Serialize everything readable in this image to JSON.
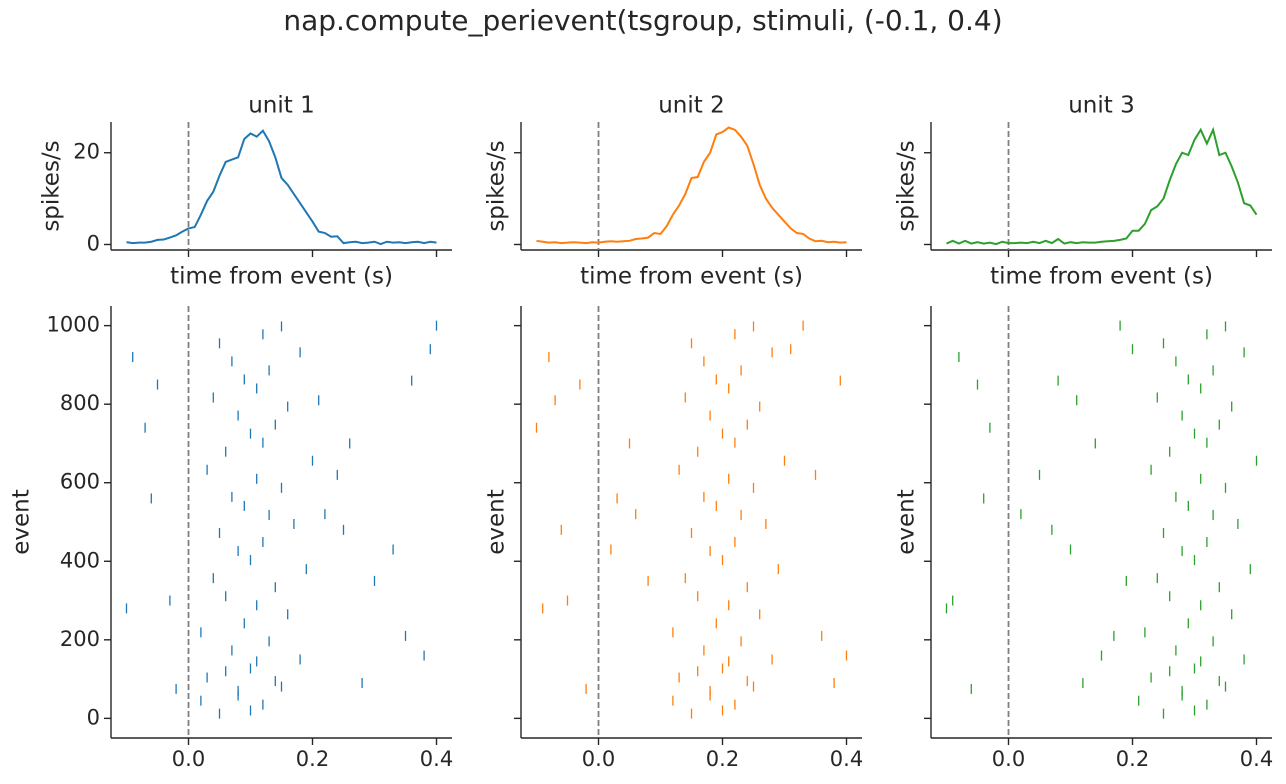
{
  "title": "nap.compute_perievent(tsgroup, stimuli, (-0.1, 0.4)",
  "chart_data": [
    {
      "type": "line",
      "title": "unit 1",
      "xlabel": "time from event (s)",
      "ylabel": "spikes/s",
      "color": "#1f77b4",
      "vline": 0,
      "x": [
        -0.1,
        -0.09,
        -0.08,
        -0.07,
        -0.06,
        -0.05,
        -0.04,
        -0.03,
        -0.02,
        -0.01,
        0,
        0.01,
        0.02,
        0.03,
        0.04,
        0.05,
        0.06,
        0.07,
        0.08,
        0.09,
        0.1,
        0.11,
        0.12,
        0.13,
        0.14,
        0.15,
        0.16,
        0.17,
        0.18,
        0.19,
        0.2,
        0.21,
        0.22,
        0.23,
        0.24,
        0.25,
        0.26,
        0.27,
        0.28,
        0.29,
        0.3,
        0.31,
        0.32,
        0.33,
        0.34,
        0.35,
        0.36,
        0.37,
        0.38,
        0.39,
        0.4
      ],
      "values": [
        0.5,
        0.3,
        0.4,
        0.4,
        0.6,
        1,
        1.1,
        1.5,
        2,
        2.8,
        3.5,
        3.8,
        6.5,
        9.5,
        11.5,
        15,
        18,
        18.5,
        19,
        23,
        24.2,
        23.5,
        24.8,
        22.5,
        19,
        14.5,
        13,
        11,
        9,
        7,
        5,
        2.8,
        2.5,
        1.7,
        1.8,
        0.3,
        0.5,
        0.6,
        0.3,
        0.4,
        0.6,
        0.1,
        0.6,
        0.4,
        0.5,
        0.3,
        0.5,
        0.6,
        0.3,
        0.6,
        0.4
      ],
      "xlim": [
        -0.125,
        0.425
      ],
      "xticks": [
        0,
        0.2,
        0.4
      ],
      "show_xticklabels": false,
      "ylim": [
        -1.2,
        26.7
      ],
      "yticks": [
        0,
        20
      ],
      "show_yticklabels": true
    },
    {
      "type": "line",
      "title": "unit 2",
      "xlabel": "time from event (s)",
      "ylabel": "spikes/s",
      "color": "#ff7f0e",
      "vline": 0,
      "x": [
        -0.1,
        -0.09,
        -0.08,
        -0.07,
        -0.06,
        -0.05,
        -0.04,
        -0.03,
        -0.02,
        -0.01,
        0,
        0.01,
        0.02,
        0.03,
        0.04,
        0.05,
        0.06,
        0.07,
        0.08,
        0.09,
        0.1,
        0.11,
        0.12,
        0.13,
        0.14,
        0.15,
        0.16,
        0.17,
        0.18,
        0.19,
        0.2,
        0.21,
        0.22,
        0.23,
        0.24,
        0.25,
        0.26,
        0.27,
        0.28,
        0.29,
        0.3,
        0.31,
        0.32,
        0.33,
        0.34,
        0.35,
        0.36,
        0.37,
        0.38,
        0.39,
        0.4
      ],
      "values": [
        0.8,
        0.6,
        0.4,
        0.5,
        0.3,
        0.4,
        0.5,
        0.4,
        0.3,
        0.5,
        0.4,
        0.6,
        0.7,
        0.6,
        0.7,
        0.8,
        1.2,
        1.3,
        1.5,
        2.5,
        2.3,
        4,
        6.5,
        8.5,
        11,
        14.5,
        14.7,
        18,
        20,
        24,
        24.5,
        25.5,
        25,
        23.5,
        21.5,
        17.5,
        13,
        10,
        8,
        6.5,
        5,
        3.5,
        2.5,
        2.3,
        1.3,
        0.7,
        0.8,
        0.5,
        0.6,
        0.4,
        0.5
      ],
      "xlim": [
        -0.125,
        0.425
      ],
      "xticks": [
        0,
        0.2,
        0.4
      ],
      "show_xticklabels": false,
      "ylim": [
        -1.2,
        26.7
      ],
      "yticks": [
        0,
        20
      ],
      "show_yticklabels": false
    },
    {
      "type": "line",
      "title": "unit 3",
      "xlabel": "time from event (s)",
      "ylabel": "spikes/s",
      "color": "#2ca02c",
      "vline": 0,
      "x": [
        -0.1,
        -0.09,
        -0.08,
        -0.07,
        -0.06,
        -0.05,
        -0.04,
        -0.03,
        -0.02,
        -0.01,
        0,
        0.01,
        0.02,
        0.03,
        0.04,
        0.05,
        0.06,
        0.07,
        0.08,
        0.09,
        0.1,
        0.11,
        0.12,
        0.13,
        0.14,
        0.15,
        0.16,
        0.17,
        0.18,
        0.19,
        0.2,
        0.21,
        0.22,
        0.23,
        0.24,
        0.25,
        0.26,
        0.27,
        0.28,
        0.29,
        0.3,
        0.31,
        0.32,
        0.33,
        0.34,
        0.35,
        0.36,
        0.37,
        0.38,
        0.39,
        0.4
      ],
      "values": [
        0.2,
        0.8,
        0.2,
        0.8,
        0.2,
        0.5,
        0.2,
        0.4,
        0.1,
        0.6,
        0.3,
        0.3,
        0.4,
        0.3,
        0.6,
        0.3,
        0.8,
        0.3,
        1.2,
        0.2,
        0.5,
        0.3,
        0.5,
        0.4,
        0.4,
        0.6,
        0.7,
        0.8,
        1,
        1.3,
        3,
        3,
        4.5,
        7.5,
        8.3,
        10,
        14,
        17.5,
        20,
        19.5,
        22.8,
        25,
        22,
        25,
        19.5,
        20,
        17,
        13.5,
        9,
        8.5,
        6.5
      ],
      "xlim": [
        -0.125,
        0.425
      ],
      "xticks": [
        0,
        0.2,
        0.4
      ],
      "show_xticklabels": false,
      "ylim": [
        -1.2,
        26.7
      ],
      "yticks": [
        0,
        20
      ],
      "show_yticklabels": false
    },
    {
      "type": "raster",
      "ylabel": "event",
      "color": "#1f77b4",
      "vline": 0,
      "x": [
        0.05,
        0.12,
        0.08,
        0.15,
        0.03,
        0.1,
        0.18,
        0.07,
        0.13,
        0.02,
        0.09,
        0.16,
        0.11,
        0.06,
        0.14,
        0.04,
        0.19,
        0.1,
        0.08,
        0.12,
        0.05,
        0.17,
        0.13,
        0.09,
        0.07,
        0.15,
        0.11,
        0.03,
        0.2,
        0.06,
        0.12,
        0.1,
        0.14,
        0.08,
        0.16,
        0.04,
        0.11,
        0.09,
        0.13,
        0.07,
        0.18,
        0.05,
        0.12,
        0.15,
        0.1,
        0.02,
        0.08,
        0.14,
        0.06,
        0.11,
        -0.09,
        -0.05,
        -0.07,
        0.24,
        0.28,
        0.33,
        0.38,
        -0.03,
        0.22,
        0.4,
        -0.1,
        0.36,
        0.26,
        -0.02,
        0.3,
        0.25,
        0.35,
        -0.06,
        0.21,
        0.39
      ],
      "values": [
        12,
        35,
        58,
        81,
        104,
        127,
        150,
        173,
        196,
        219,
        242,
        265,
        288,
        311,
        334,
        357,
        380,
        403,
        426,
        449,
        472,
        495,
        518,
        541,
        564,
        587,
        610,
        633,
        656,
        679,
        702,
        725,
        748,
        771,
        794,
        817,
        840,
        863,
        886,
        909,
        932,
        955,
        978,
        998,
        20,
        45,
        70,
        95,
        120,
        145,
        920,
        850,
        740,
        620,
        90,
        430,
        160,
        300,
        520,
        1000,
        280,
        860,
        700,
        75,
        350,
        480,
        210,
        560,
        810,
        940
      ],
      "xlim": [
        -0.125,
        0.425
      ],
      "xticks": [
        {
          "value": 0,
          "label": "0.0"
        },
        0.2,
        0.4
      ],
      "show_xticklabels": true,
      "ylim": [
        -50,
        1050
      ],
      "yticks": [
        0,
        200,
        400,
        600,
        800,
        1000
      ],
      "show_yticklabels": true
    },
    {
      "type": "raster",
      "ylabel": "event",
      "color": "#ff7f0e",
      "vline": 0,
      "x": [
        0.15,
        0.22,
        0.18,
        0.25,
        0.13,
        0.2,
        0.28,
        0.17,
        0.23,
        0.12,
        0.19,
        0.26,
        0.21,
        0.16,
        0.24,
        0.14,
        0.29,
        0.2,
        0.18,
        0.22,
        0.15,
        0.27,
        0.23,
        0.19,
        0.17,
        0.25,
        0.21,
        0.13,
        0.3,
        0.16,
        0.22,
        0.2,
        0.24,
        0.18,
        0.26,
        0.14,
        0.21,
        0.19,
        0.23,
        0.17,
        0.28,
        0.15,
        0.22,
        0.25,
        0.2,
        0.12,
        0.18,
        0.24,
        0.16,
        0.21,
        -0.08,
        -0.03,
        -0.1,
        0.35,
        0.38,
        0.02,
        0.4,
        -0.05,
        0.06,
        0.33,
        -0.09,
        0.39,
        0.05,
        -0.02,
        0.08,
        -0.06,
        0.36,
        0.03,
        -0.07,
        0.31
      ],
      "values": [
        12,
        35,
        58,
        81,
        104,
        127,
        150,
        173,
        196,
        219,
        242,
        265,
        288,
        311,
        334,
        357,
        380,
        403,
        426,
        449,
        472,
        495,
        518,
        541,
        564,
        587,
        610,
        633,
        656,
        679,
        702,
        725,
        748,
        771,
        794,
        817,
        840,
        863,
        886,
        909,
        932,
        955,
        978,
        998,
        20,
        45,
        70,
        95,
        120,
        145,
        920,
        850,
        740,
        620,
        90,
        430,
        160,
        300,
        520,
        1000,
        280,
        860,
        700,
        75,
        350,
        480,
        210,
        560,
        810,
        940
      ],
      "xlim": [
        -0.125,
        0.425
      ],
      "xticks": [
        {
          "value": 0,
          "label": "0.0"
        },
        0.2,
        0.4
      ],
      "show_xticklabels": true,
      "ylim": [
        -50,
        1050
      ],
      "yticks": [
        0,
        200,
        400,
        600,
        800,
        1000
      ],
      "show_yticklabels": false
    },
    {
      "type": "raster",
      "ylabel": "event",
      "color": "#2ca02c",
      "vline": 0,
      "x": [
        0.25,
        0.32,
        0.28,
        0.35,
        0.23,
        0.3,
        0.38,
        0.27,
        0.33,
        0.22,
        0.29,
        0.36,
        0.31,
        0.26,
        0.34,
        0.24,
        0.39,
        0.3,
        0.28,
        0.32,
        0.25,
        0.37,
        0.33,
        0.29,
        0.27,
        0.35,
        0.31,
        0.23,
        0.4,
        0.26,
        0.32,
        0.3,
        0.34,
        0.28,
        0.36,
        0.24,
        0.31,
        0.29,
        0.33,
        0.27,
        0.38,
        0.25,
        0.32,
        0.35,
        0.3,
        0.21,
        0.28,
        0.34,
        0.26,
        0.31,
        -0.08,
        -0.05,
        -0.03,
        0.05,
        0.12,
        0.1,
        0.15,
        -0.09,
        0.02,
        0.18,
        -0.1,
        0.08,
        0.14,
        -0.06,
        0.19,
        0.07,
        0.17,
        -0.04,
        0.11,
        0.2
      ],
      "values": [
        12,
        35,
        58,
        81,
        104,
        127,
        150,
        173,
        196,
        219,
        242,
        265,
        288,
        311,
        334,
        357,
        380,
        403,
        426,
        449,
        472,
        495,
        518,
        541,
        564,
        587,
        610,
        633,
        656,
        679,
        702,
        725,
        748,
        771,
        794,
        817,
        840,
        863,
        886,
        909,
        932,
        955,
        978,
        998,
        20,
        45,
        70,
        95,
        120,
        145,
        920,
        850,
        740,
        620,
        90,
        430,
        160,
        300,
        520,
        1000,
        280,
        860,
        700,
        75,
        350,
        480,
        210,
        560,
        810,
        940
      ],
      "xlim": [
        -0.125,
        0.425
      ],
      "xticks": [
        {
          "value": 0,
          "label": "0.0"
        },
        0.2,
        0.4
      ],
      "show_xticklabels": true,
      "ylim": [
        -50,
        1050
      ],
      "yticks": [
        0,
        200,
        400,
        600,
        800,
        1000
      ],
      "show_yticklabels": false
    }
  ]
}
